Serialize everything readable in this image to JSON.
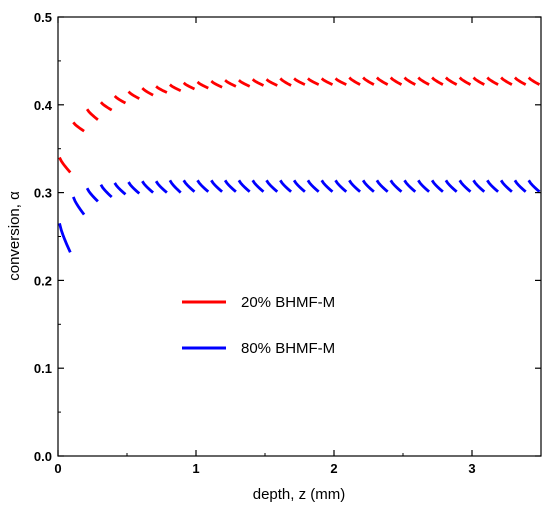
{
  "chart_data": {
    "type": "line",
    "title": "",
    "xlabel": "depth, z (mm)",
    "ylabel": "conversion, α",
    "xlim": [
      0,
      3.5
    ],
    "ylim": [
      0,
      0.5
    ],
    "xticks": [
      0,
      1,
      2,
      3
    ],
    "yticks": [
      0.0,
      0.1,
      0.2,
      0.3,
      0.4,
      0.5
    ],
    "xtick_labels": [
      "0",
      "1",
      "2",
      "3"
    ],
    "ytick_labels": [
      "0.0",
      "0.1",
      "0.2",
      "0.3",
      "0.4",
      "0.5"
    ],
    "grid": false,
    "legend_position": "center-left",
    "segment_width_mm": 0.1,
    "series": [
      {
        "name": "20% BHMF-M",
        "color": "#ff0000",
        "segments": [
          [
            0.34,
            0.323
          ],
          [
            0.38,
            0.37
          ],
          [
            0.395,
            0.383
          ],
          [
            0.403,
            0.394
          ],
          [
            0.41,
            0.402
          ],
          [
            0.415,
            0.407
          ],
          [
            0.419,
            0.411
          ],
          [
            0.421,
            0.414
          ],
          [
            0.423,
            0.416
          ],
          [
            0.425,
            0.418
          ],
          [
            0.426,
            0.419
          ],
          [
            0.427,
            0.42
          ],
          [
            0.428,
            0.421
          ],
          [
            0.428,
            0.421
          ],
          [
            0.429,
            0.422
          ],
          [
            0.429,
            0.422
          ],
          [
            0.43,
            0.422
          ],
          [
            0.43,
            0.423
          ],
          [
            0.43,
            0.423
          ],
          [
            0.43,
            0.423
          ],
          [
            0.43,
            0.423
          ],
          [
            0.431,
            0.423
          ],
          [
            0.431,
            0.423
          ],
          [
            0.431,
            0.423
          ],
          [
            0.431,
            0.423
          ],
          [
            0.431,
            0.423
          ],
          [
            0.431,
            0.423
          ],
          [
            0.431,
            0.423
          ],
          [
            0.431,
            0.423
          ],
          [
            0.431,
            0.423
          ],
          [
            0.431,
            0.423
          ],
          [
            0.431,
            0.423
          ],
          [
            0.431,
            0.423
          ],
          [
            0.431,
            0.423
          ],
          [
            0.431,
            0.423
          ]
        ]
      },
      {
        "name": "80% BHMF-M",
        "color": "#0000ff",
        "segments": [
          [
            0.265,
            0.232
          ],
          [
            0.295,
            0.275
          ],
          [
            0.305,
            0.29
          ],
          [
            0.309,
            0.295
          ],
          [
            0.311,
            0.298
          ],
          [
            0.312,
            0.299
          ],
          [
            0.313,
            0.3
          ],
          [
            0.313,
            0.3
          ],
          [
            0.314,
            0.3
          ],
          [
            0.314,
            0.301
          ],
          [
            0.314,
            0.301
          ],
          [
            0.314,
            0.301
          ],
          [
            0.314,
            0.301
          ],
          [
            0.314,
            0.301
          ],
          [
            0.314,
            0.301
          ],
          [
            0.314,
            0.301
          ],
          [
            0.314,
            0.301
          ],
          [
            0.314,
            0.301
          ],
          [
            0.314,
            0.301
          ],
          [
            0.314,
            0.301
          ],
          [
            0.314,
            0.301
          ],
          [
            0.314,
            0.301
          ],
          [
            0.314,
            0.301
          ],
          [
            0.314,
            0.301
          ],
          [
            0.314,
            0.301
          ],
          [
            0.314,
            0.301
          ],
          [
            0.314,
            0.301
          ],
          [
            0.314,
            0.301
          ],
          [
            0.314,
            0.301
          ],
          [
            0.314,
            0.301
          ],
          [
            0.314,
            0.301
          ],
          [
            0.314,
            0.301
          ],
          [
            0.314,
            0.301
          ],
          [
            0.314,
            0.301
          ],
          [
            0.314,
            0.301
          ]
        ]
      }
    ]
  }
}
